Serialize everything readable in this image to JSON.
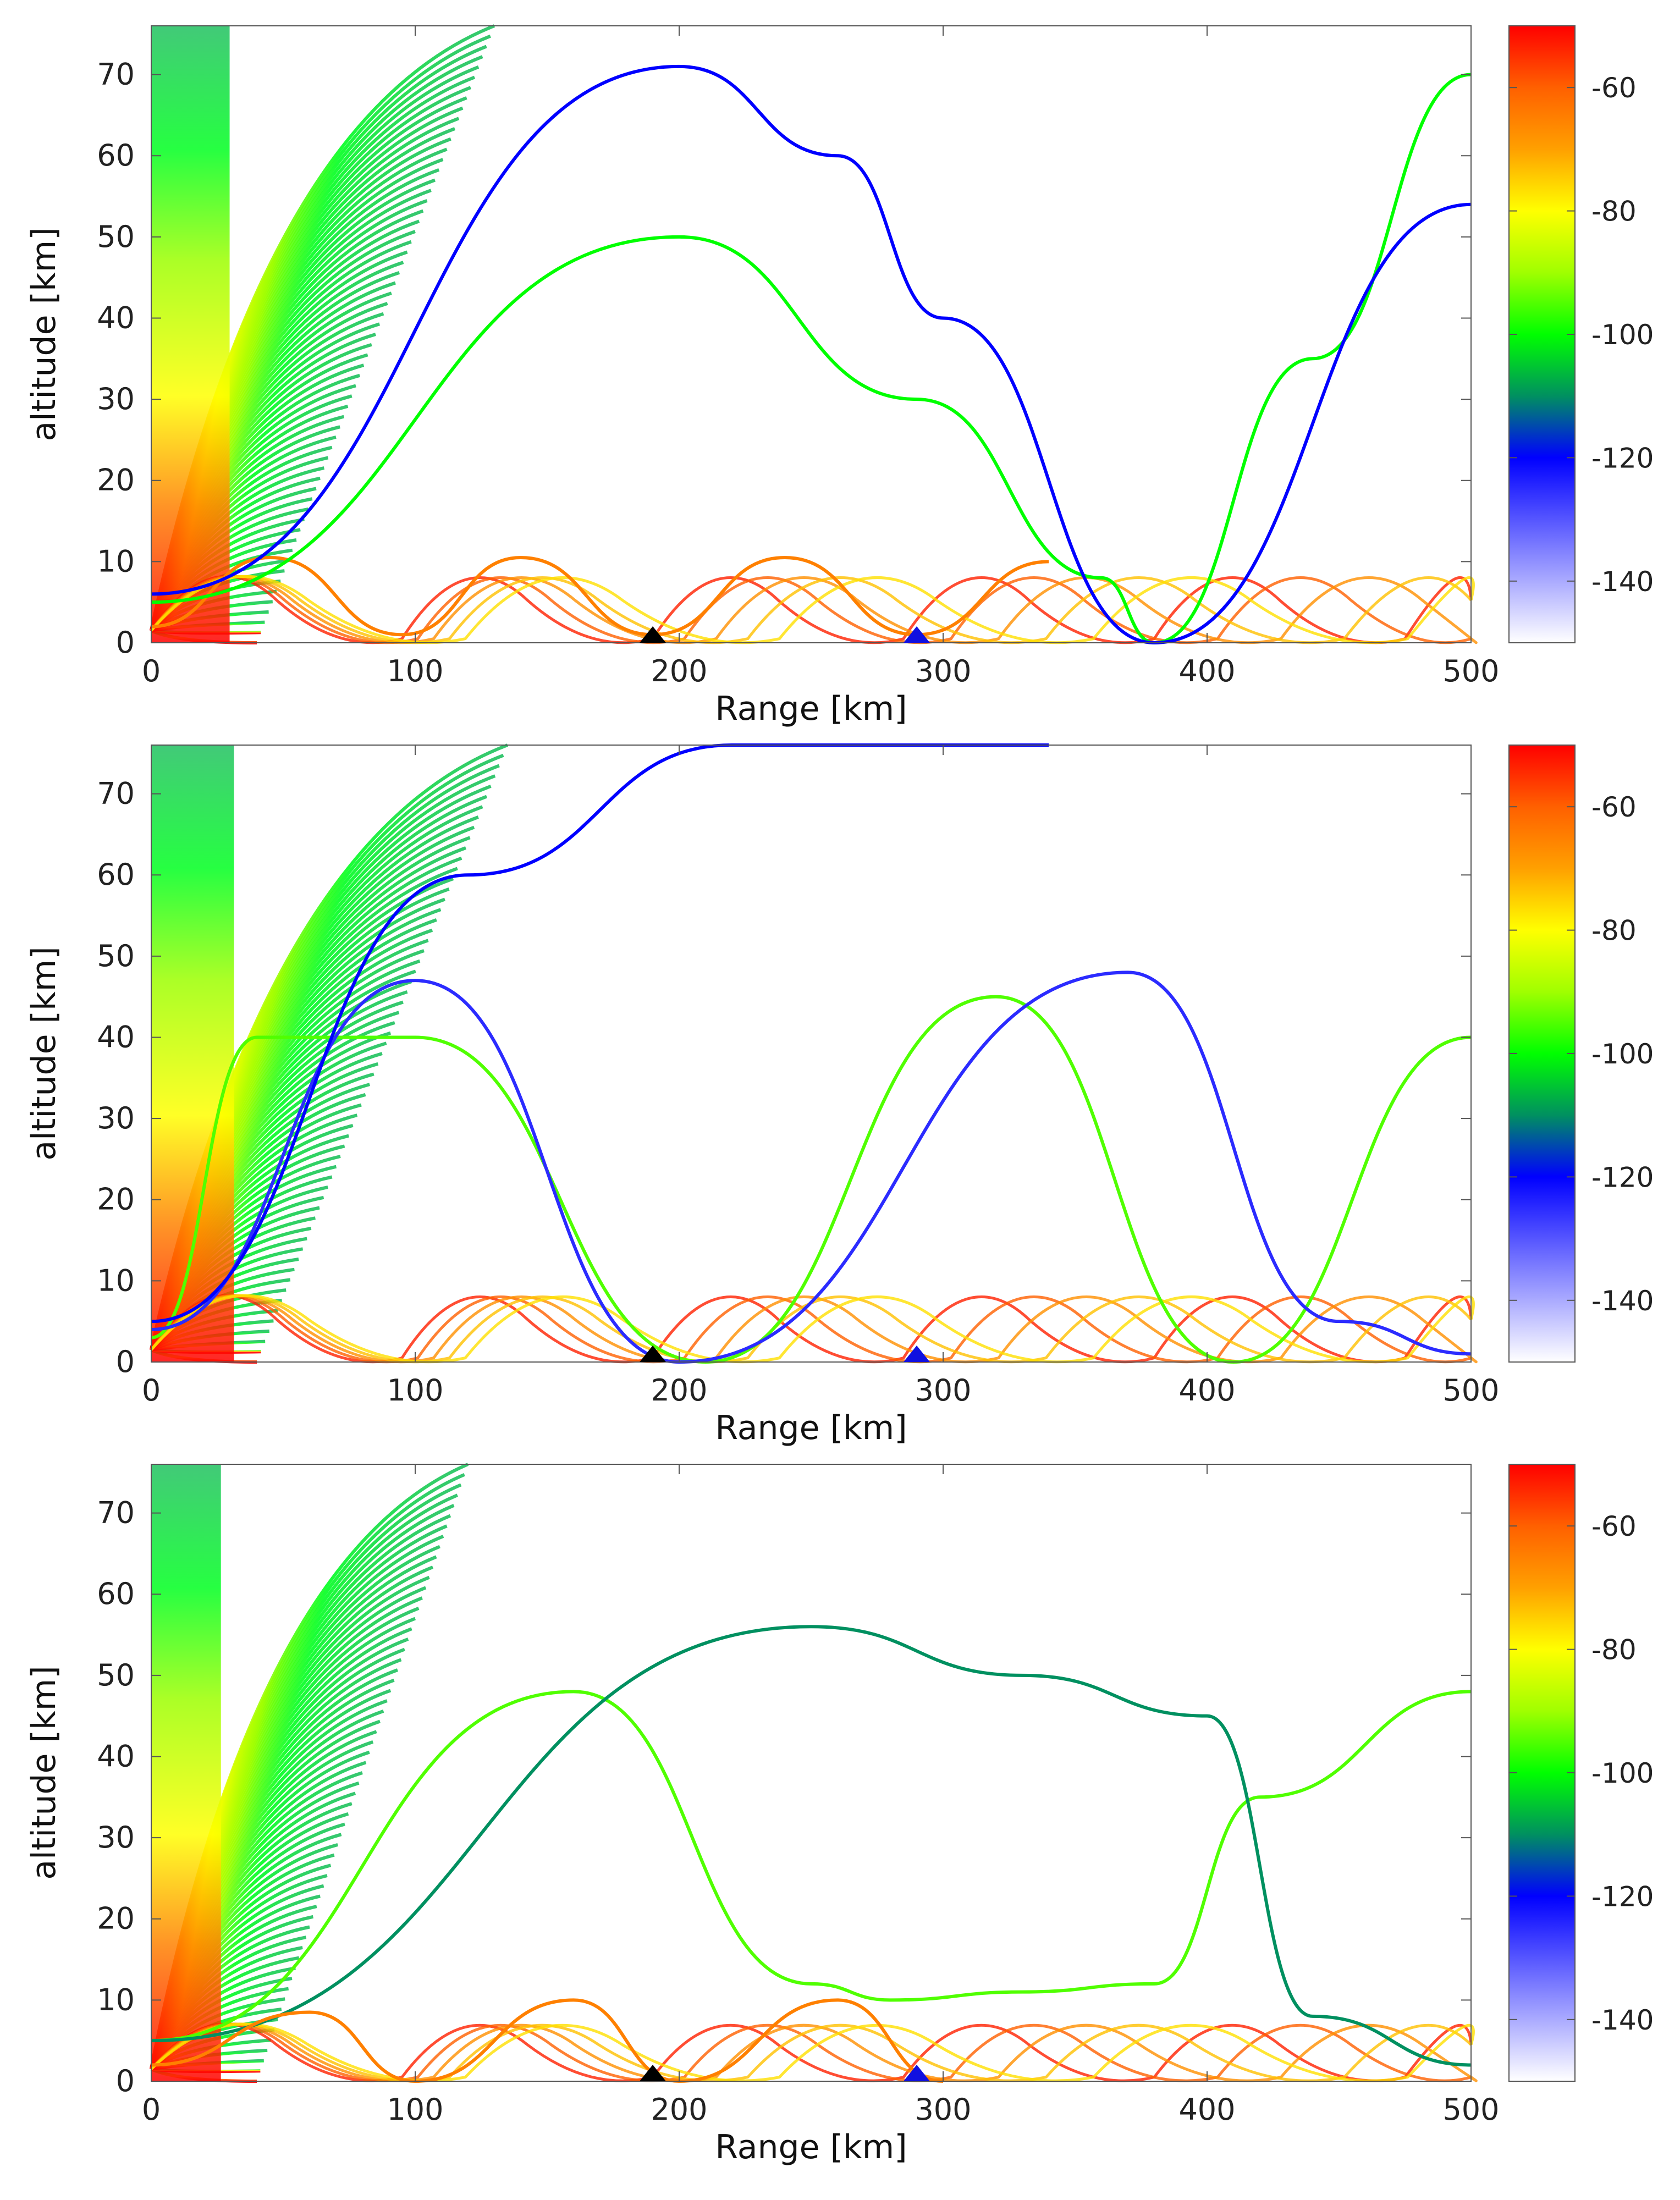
{
  "chart_data": [
    {
      "type": "line",
      "panel": "top",
      "xlabel": "Range [km]",
      "ylabel": "altitude [km]",
      "xlim": [
        0,
        500
      ],
      "ylim": [
        0,
        76
      ],
      "xticks": [
        0,
        100,
        200,
        300,
        400,
        500
      ],
      "yticks": [
        0,
        10,
        20,
        30,
        40,
        50,
        60,
        70
      ],
      "colorbar": {
        "min": -150,
        "max": -50,
        "ticks": [
          -60,
          -80,
          -100,
          -120,
          -140
        ]
      },
      "markers": [
        {
          "name": "black-station",
          "x": 190,
          "y": 0,
          "color": "#000000"
        },
        {
          "name": "blue-station",
          "x": 290,
          "y": 0,
          "color": "#1010e0"
        }
      ],
      "series": [
        {
          "name": "ray-a",
          "x": [
            0,
            45,
            95,
            140,
            190,
            240,
            290,
            340
          ],
          "y": [
            2,
            10.5,
            1,
            10.5,
            1,
            10.5,
            1,
            10
          ],
          "color_db": -65
        },
        {
          "name": "ray-b",
          "x": [
            0,
            200,
            290,
            360,
            380,
            440,
            500
          ],
          "y": [
            5,
            50,
            30,
            8,
            0,
            35,
            70
          ],
          "color_db": -100
        },
        {
          "name": "ray-c",
          "x": [
            0,
            200,
            260,
            300,
            380,
            500
          ],
          "y": [
            6,
            71,
            60,
            40,
            0,
            54
          ],
          "color_db": -120
        }
      ]
    },
    {
      "type": "line",
      "panel": "middle",
      "xlabel": "Range [km]",
      "ylabel": "altitude [km]",
      "xlim": [
        0,
        500
      ],
      "ylim": [
        0,
        76
      ],
      "xticks": [
        0,
        100,
        200,
        300,
        400,
        500
      ],
      "yticks": [
        0,
        10,
        20,
        30,
        40,
        50,
        60,
        70
      ],
      "colorbar": {
        "min": -150,
        "max": -50,
        "ticks": [
          -60,
          -80,
          -100,
          -120,
          -140
        ]
      },
      "markers": [
        {
          "name": "black-station",
          "x": 190,
          "y": 0,
          "color": "#000000"
        },
        {
          "name": "blue-station",
          "x": 290,
          "y": 0,
          "color": "#1010e0"
        }
      ],
      "series": [
        {
          "name": "ray-a",
          "x": [
            0,
            40,
            100,
            210,
            320,
            410,
            500
          ],
          "y": [
            3,
            40,
            40,
            0,
            45,
            0,
            40
          ],
          "color_db": -95
        },
        {
          "name": "ray-b",
          "x": [
            0,
            100,
            200,
            370,
            450,
            500
          ],
          "y": [
            4,
            47,
            0,
            48,
            5,
            1
          ],
          "color_db": -125
        },
        {
          "name": "ray-c",
          "x": [
            0,
            120,
            220,
            340
          ],
          "y": [
            5,
            60,
            76,
            76
          ],
          "color_db": -120
        }
      ]
    },
    {
      "type": "line",
      "panel": "bottom",
      "xlabel": "Range [km]",
      "ylabel": "altitude [km]",
      "xlim": [
        0,
        500
      ],
      "ylim": [
        0,
        76
      ],
      "xticks": [
        0,
        100,
        200,
        300,
        400,
        500
      ],
      "yticks": [
        0,
        10,
        20,
        30,
        40,
        50,
        60,
        70
      ],
      "colorbar": {
        "min": -150,
        "max": -50,
        "ticks": [
          -60,
          -80,
          -100,
          -120,
          -140
        ]
      },
      "markers": [
        {
          "name": "black-station",
          "x": 190,
          "y": 0,
          "color": "#000000"
        },
        {
          "name": "blue-station",
          "x": 290,
          "y": 0,
          "color": "#1010e0"
        }
      ],
      "series": [
        {
          "name": "ray-a",
          "x": [
            0,
            160,
            250,
            280,
            330,
            380,
            420,
            500
          ],
          "y": [
            5,
            48,
            12,
            10,
            11,
            12,
            35,
            48
          ],
          "color_db": -95
        },
        {
          "name": "ray-b",
          "x": [
            0,
            250,
            330,
            400,
            440,
            500
          ],
          "y": [
            5,
            56,
            50,
            45,
            8,
            2
          ],
          "color_db": -110
        },
        {
          "name": "ray-c",
          "x": [
            0,
            60,
            100,
            160,
            200,
            260,
            300
          ],
          "y": [
            2,
            8.5,
            0,
            10,
            0,
            10,
            0
          ],
          "color_db": -65
        }
      ]
    }
  ]
}
